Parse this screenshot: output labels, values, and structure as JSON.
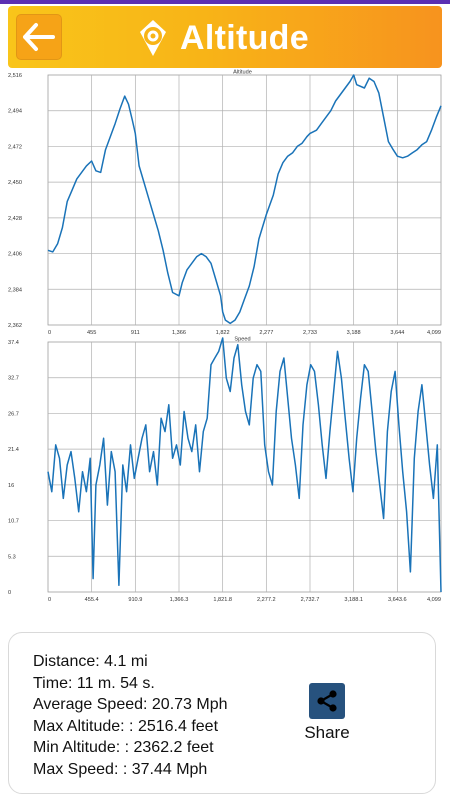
{
  "header": {
    "title": "Altitude",
    "back_icon": "back-arrow-icon",
    "title_icon": "altitude-logo-icon"
  },
  "chart_data": [
    {
      "type": "line",
      "title": "Altitude",
      "xlabel": "",
      "ylabel": "",
      "x_ticks": [
        "0",
        "455",
        "911",
        "1,366",
        "1,822",
        "2,277",
        "2,733",
        "3,188",
        "3,644",
        "4,099"
      ],
      "y_ticks": [
        "2,362",
        "2,384",
        "2,406",
        "2,428",
        "2,450",
        "2,472",
        "2,494",
        "2,516"
      ],
      "xlim": [
        0,
        4099
      ],
      "ylim": [
        2362,
        2516
      ],
      "grid": true,
      "color": "#1a73b8",
      "x": [
        0,
        50,
        100,
        150,
        200,
        250,
        300,
        350,
        400,
        455,
        500,
        550,
        600,
        650,
        700,
        750,
        800,
        840,
        880,
        911,
        950,
        1000,
        1050,
        1100,
        1150,
        1200,
        1250,
        1300,
        1366,
        1400,
        1450,
        1500,
        1550,
        1600,
        1650,
        1700,
        1750,
        1800,
        1822,
        1850,
        1900,
        1950,
        2000,
        2050,
        2100,
        2150,
        2200,
        2277,
        2350,
        2400,
        2450,
        2500,
        2550,
        2600,
        2650,
        2700,
        2733,
        2800,
        2850,
        2900,
        2950,
        3000,
        3050,
        3100,
        3150,
        3188,
        3220,
        3300,
        3350,
        3400,
        3450,
        3500,
        3550,
        3600,
        3644,
        3700,
        3750,
        3800,
        3850,
        3900,
        3950,
        4000,
        4050,
        4099
      ],
      "y": [
        2408,
        2407,
        2412,
        2422,
        2438,
        2445,
        2452,
        2456,
        2460,
        2463,
        2457,
        2456,
        2470,
        2478,
        2486,
        2495,
        2503,
        2498,
        2488,
        2480,
        2460,
        2450,
        2440,
        2430,
        2420,
        2408,
        2394,
        2382,
        2380,
        2388,
        2396,
        2400,
        2404,
        2406,
        2404,
        2400,
        2390,
        2380,
        2370,
        2365,
        2363,
        2365,
        2370,
        2378,
        2386,
        2398,
        2415,
        2430,
        2442,
        2455,
        2462,
        2466,
        2468,
        2472,
        2474,
        2478,
        2480,
        2482,
        2486,
        2490,
        2494,
        2500,
        2504,
        2508,
        2512,
        2516,
        2510,
        2508,
        2514,
        2512,
        2505,
        2490,
        2475,
        2470,
        2466,
        2465,
        2466,
        2468,
        2470,
        2473,
        2475,
        2482,
        2490,
        2497
      ]
    },
    {
      "type": "line",
      "title": "Speed",
      "xlabel": "",
      "ylabel": "",
      "x_ticks": [
        "0",
        "455.4",
        "910.9",
        "1,366.3",
        "1,821.8",
        "2,277.2",
        "2,732.7",
        "3,188.1",
        "3,643.6",
        "4,099"
      ],
      "y_ticks": [
        "0",
        "5.3",
        "10.7",
        "16",
        "21.4",
        "26.7",
        "32.7",
        "37.4"
      ],
      "xlim": [
        0,
        4099
      ],
      "ylim": [
        0,
        37.4
      ],
      "grid": true,
      "color": "#1a73b8",
      "x": [
        0,
        40,
        80,
        120,
        160,
        200,
        240,
        280,
        320,
        360,
        400,
        440,
        470,
        500,
        540,
        580,
        620,
        660,
        700,
        740,
        780,
        820,
        860,
        900,
        940,
        980,
        1020,
        1060,
        1100,
        1140,
        1180,
        1220,
        1260,
        1300,
        1340,
        1380,
        1420,
        1460,
        1500,
        1540,
        1580,
        1620,
        1660,
        1700,
        1740,
        1780,
        1822,
        1860,
        1900,
        1940,
        1980,
        2020,
        2060,
        2100,
        2140,
        2180,
        2220,
        2260,
        2300,
        2340,
        2380,
        2420,
        2460,
        2500,
        2540,
        2580,
        2620,
        2660,
        2700,
        2740,
        2780,
        2820,
        2860,
        2900,
        2940,
        2980,
        3020,
        3060,
        3100,
        3140,
        3180,
        3220,
        3260,
        3300,
        3340,
        3380,
        3420,
        3460,
        3500,
        3540,
        3580,
        3620,
        3660,
        3700,
        3740,
        3780,
        3820,
        3860,
        3900,
        3940,
        3980,
        4020,
        4060,
        4099
      ],
      "y": [
        18,
        15,
        22,
        20,
        14,
        19,
        21,
        17,
        12,
        18,
        15,
        20,
        2,
        16,
        19,
        23,
        13,
        21,
        18,
        1,
        19,
        15,
        22,
        17,
        20,
        23,
        25,
        18,
        21,
        16,
        26,
        24,
        28,
        20,
        22,
        19,
        27,
        23,
        21,
        25,
        18,
        24,
        26,
        34,
        35,
        36,
        38,
        32,
        30,
        35,
        37,
        31,
        27,
        25,
        32,
        34,
        33,
        22,
        18,
        16,
        27,
        33,
        35,
        29,
        23,
        19,
        14,
        25,
        31,
        34,
        33,
        28,
        22,
        17,
        24,
        30,
        36,
        32,
        26,
        20,
        15,
        23,
        29,
        34,
        33,
        27,
        21,
        16,
        11,
        24,
        30,
        33,
        25,
        18,
        12,
        3,
        20,
        27,
        31,
        25,
        19,
        14,
        22,
        0
      ]
    }
  ],
  "stats": {
    "distance": "Distance: 4.1 mi",
    "time": "Time: 11 m. 54 s.",
    "avg_speed": "Average Speed: 20.73 Mph",
    "max_altitude": "Max Altitude:  : 2516.4 feet",
    "min_altitude": "Min Altitude:  : 2362.2 feet",
    "max_speed": "Max Speed:  : 37.44 Mph"
  },
  "share": {
    "label": "Share",
    "icon": "share-icon"
  }
}
